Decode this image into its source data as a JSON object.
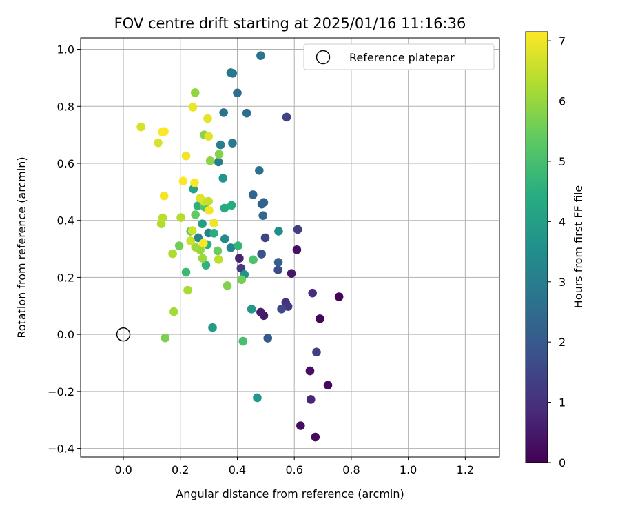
{
  "chart_data": {
    "type": "scatter",
    "title": "FOV centre drift starting at 2025/01/16 11:16:36",
    "xlabel": "Angular distance from reference (arcmin)",
    "ylabel": "Rotation from reference (arcmin)",
    "xlim": [
      -0.15,
      1.32
    ],
    "ylim": [
      -0.43,
      1.04
    ],
    "xticks": [
      0.0,
      0.2,
      0.4,
      0.6,
      0.8,
      1.0,
      1.2
    ],
    "xtick_labels": [
      "0.0",
      "0.2",
      "0.4",
      "0.6",
      "0.8",
      "1.0",
      "1.2"
    ],
    "yticks": [
      -0.4,
      -0.2,
      0.0,
      0.2,
      0.4,
      0.6,
      0.8,
      1.0
    ],
    "ytick_labels": [
      "−0.4",
      "−0.2",
      "0.0",
      "0.2",
      "0.4",
      "0.6",
      "0.8",
      "1.0"
    ],
    "grid": true,
    "legend": {
      "position": "top-right",
      "label": "Reference platepar"
    },
    "reference_point": {
      "x": 0.0,
      "y": 0.0
    },
    "colormap": "viridis",
    "colorbar": {
      "label": "Hours from first FF file",
      "min": 0,
      "max": 7.15,
      "ticks": [
        0,
        1,
        2,
        3,
        4,
        5,
        6,
        7
      ],
      "tick_labels": [
        "0",
        "1",
        "2",
        "3",
        "4",
        "5",
        "6",
        "7"
      ]
    },
    "points": [
      {
        "x": 0.757,
        "y": 0.132,
        "h": 0.05
      },
      {
        "x": 0.69,
        "y": 0.055,
        "h": 0.1
      },
      {
        "x": 0.718,
        "y": -0.178,
        "h": 0.15
      },
      {
        "x": 0.674,
        "y": -0.36,
        "h": 0.2
      },
      {
        "x": 0.622,
        "y": -0.32,
        "h": 0.25
      },
      {
        "x": 0.655,
        "y": -0.128,
        "h": 0.3
      },
      {
        "x": 0.609,
        "y": 0.297,
        "h": 0.35
      },
      {
        "x": 0.59,
        "y": 0.214,
        "h": 0.45
      },
      {
        "x": 0.493,
        "y": 0.066,
        "h": 0.5
      },
      {
        "x": 0.482,
        "y": 0.078,
        "h": 0.55
      },
      {
        "x": 0.407,
        "y": 0.267,
        "h": 0.7
      },
      {
        "x": 0.658,
        "y": -0.228,
        "h": 0.8
      },
      {
        "x": 0.664,
        "y": 0.145,
        "h": 0.9
      },
      {
        "x": 0.57,
        "y": 0.112,
        "h": 1.0
      },
      {
        "x": 0.578,
        "y": 0.098,
        "h": 1.1
      },
      {
        "x": 0.413,
        "y": 0.232,
        "h": 1.2
      },
      {
        "x": 0.612,
        "y": 0.368,
        "h": 1.3
      },
      {
        "x": 0.678,
        "y": -0.062,
        "h": 1.35
      },
      {
        "x": 0.573,
        "y": 0.762,
        "h": 1.4
      },
      {
        "x": 0.498,
        "y": 0.339,
        "h": 1.5
      },
      {
        "x": 0.555,
        "y": 0.089,
        "h": 1.6
      },
      {
        "x": 0.543,
        "y": 0.226,
        "h": 1.7
      },
      {
        "x": 0.485,
        "y": 0.282,
        "h": 1.85
      },
      {
        "x": 0.507,
        "y": -0.013,
        "h": 2.0
      },
      {
        "x": 0.544,
        "y": 0.253,
        "h": 2.1
      },
      {
        "x": 0.486,
        "y": 0.457,
        "h": 2.2
      },
      {
        "x": 0.493,
        "y": 0.463,
        "h": 2.25
      },
      {
        "x": 0.455,
        "y": 0.49,
        "h": 2.3
      },
      {
        "x": 0.49,
        "y": 0.417,
        "h": 2.4
      },
      {
        "x": 0.433,
        "y": 0.776,
        "h": 2.5
      },
      {
        "x": 0.4,
        "y": 0.847,
        "h": 2.55
      },
      {
        "x": 0.477,
        "y": 0.575,
        "h": 2.6
      },
      {
        "x": 0.482,
        "y": 0.978,
        "h": 2.7
      },
      {
        "x": 0.352,
        "y": 0.778,
        "h": 2.75
      },
      {
        "x": 0.377,
        "y": 0.918,
        "h": 2.8
      },
      {
        "x": 0.384,
        "y": 0.916,
        "h": 2.85
      },
      {
        "x": 0.383,
        "y": 0.671,
        "h": 2.9
      },
      {
        "x": 0.334,
        "y": 0.605,
        "h": 3.0
      },
      {
        "x": 0.341,
        "y": 0.665,
        "h": 3.05
      },
      {
        "x": 0.299,
        "y": 0.356,
        "h": 3.1
      },
      {
        "x": 0.263,
        "y": 0.339,
        "h": 3.2
      },
      {
        "x": 0.377,
        "y": 0.304,
        "h": 3.3
      },
      {
        "x": 0.356,
        "y": 0.335,
        "h": 3.4
      },
      {
        "x": 0.545,
        "y": 0.362,
        "h": 3.5
      },
      {
        "x": 0.425,
        "y": 0.21,
        "h": 3.6
      },
      {
        "x": 0.35,
        "y": 0.548,
        "h": 3.7
      },
      {
        "x": 0.47,
        "y": -0.222,
        "h": 3.75
      },
      {
        "x": 0.45,
        "y": 0.089,
        "h": 3.8
      },
      {
        "x": 0.313,
        "y": 0.024,
        "h": 3.9
      },
      {
        "x": 0.277,
        "y": 0.388,
        "h": 4.0
      },
      {
        "x": 0.246,
        "y": 0.51,
        "h": 4.1
      },
      {
        "x": 0.355,
        "y": 0.443,
        "h": 4.3
      },
      {
        "x": 0.38,
        "y": 0.453,
        "h": 4.4
      },
      {
        "x": 0.318,
        "y": 0.355,
        "h": 4.45
      },
      {
        "x": 0.295,
        "y": 0.315,
        "h": 4.5
      },
      {
        "x": 0.261,
        "y": 0.451,
        "h": 4.55
      },
      {
        "x": 0.29,
        "y": 0.243,
        "h": 4.6
      },
      {
        "x": 0.403,
        "y": 0.311,
        "h": 4.7
      },
      {
        "x": 0.22,
        "y": 0.218,
        "h": 4.8
      },
      {
        "x": 0.42,
        "y": -0.024,
        "h": 5.0
      },
      {
        "x": 0.456,
        "y": 0.262,
        "h": 5.1
      },
      {
        "x": 0.285,
        "y": 0.447,
        "h": 5.2
      },
      {
        "x": 0.236,
        "y": 0.362,
        "h": 5.3
      },
      {
        "x": 0.253,
        "y": 0.42,
        "h": 5.4
      },
      {
        "x": 0.331,
        "y": 0.293,
        "h": 5.5
      },
      {
        "x": 0.196,
        "y": 0.311,
        "h": 5.55
      },
      {
        "x": 0.415,
        "y": 0.192,
        "h": 5.6
      },
      {
        "x": 0.147,
        "y": -0.012,
        "h": 5.7
      },
      {
        "x": 0.365,
        "y": 0.171,
        "h": 5.75
      },
      {
        "x": 0.336,
        "y": 0.632,
        "h": 5.8
      },
      {
        "x": 0.284,
        "y": 0.7,
        "h": 5.85
      },
      {
        "x": 0.305,
        "y": 0.609,
        "h": 5.9
      },
      {
        "x": 0.252,
        "y": 0.848,
        "h": 5.95
      },
      {
        "x": 0.27,
        "y": 0.296,
        "h": 6.0
      },
      {
        "x": 0.278,
        "y": 0.267,
        "h": 6.05
      },
      {
        "x": 0.253,
        "y": 0.306,
        "h": 6.1
      },
      {
        "x": 0.177,
        "y": 0.08,
        "h": 6.15
      },
      {
        "x": 0.226,
        "y": 0.155,
        "h": 6.2
      },
      {
        "x": 0.173,
        "y": 0.283,
        "h": 6.25
      },
      {
        "x": 0.133,
        "y": 0.388,
        "h": 6.3
      },
      {
        "x": 0.202,
        "y": 0.41,
        "h": 6.35
      },
      {
        "x": 0.138,
        "y": 0.409,
        "h": 6.4
      },
      {
        "x": 0.334,
        "y": 0.263,
        "h": 6.45
      },
      {
        "x": 0.299,
        "y": 0.467,
        "h": 6.5
      },
      {
        "x": 0.283,
        "y": 0.466,
        "h": 6.55
      },
      {
        "x": 0.236,
        "y": 0.328,
        "h": 6.6
      },
      {
        "x": 0.242,
        "y": 0.364,
        "h": 6.65
      },
      {
        "x": 0.062,
        "y": 0.728,
        "h": 6.7
      },
      {
        "x": 0.122,
        "y": 0.672,
        "h": 6.75
      },
      {
        "x": 0.27,
        "y": 0.478,
        "h": 6.8
      },
      {
        "x": 0.299,
        "y": 0.695,
        "h": 6.85
      },
      {
        "x": 0.296,
        "y": 0.757,
        "h": 6.9
      },
      {
        "x": 0.244,
        "y": 0.797,
        "h": 6.95
      },
      {
        "x": 0.318,
        "y": 0.39,
        "h": 7.0
      },
      {
        "x": 0.22,
        "y": 0.626,
        "h": 7.0
      },
      {
        "x": 0.301,
        "y": 0.435,
        "h": 7.05
      },
      {
        "x": 0.143,
        "y": 0.486,
        "h": 7.05
      },
      {
        "x": 0.281,
        "y": 0.32,
        "h": 7.1
      },
      {
        "x": 0.25,
        "y": 0.532,
        "h": 7.1
      },
      {
        "x": 0.21,
        "y": 0.538,
        "h": 7.12
      },
      {
        "x": 0.136,
        "y": 0.71,
        "h": 7.13
      },
      {
        "x": 0.144,
        "y": 0.712,
        "h": 7.15
      }
    ]
  }
}
